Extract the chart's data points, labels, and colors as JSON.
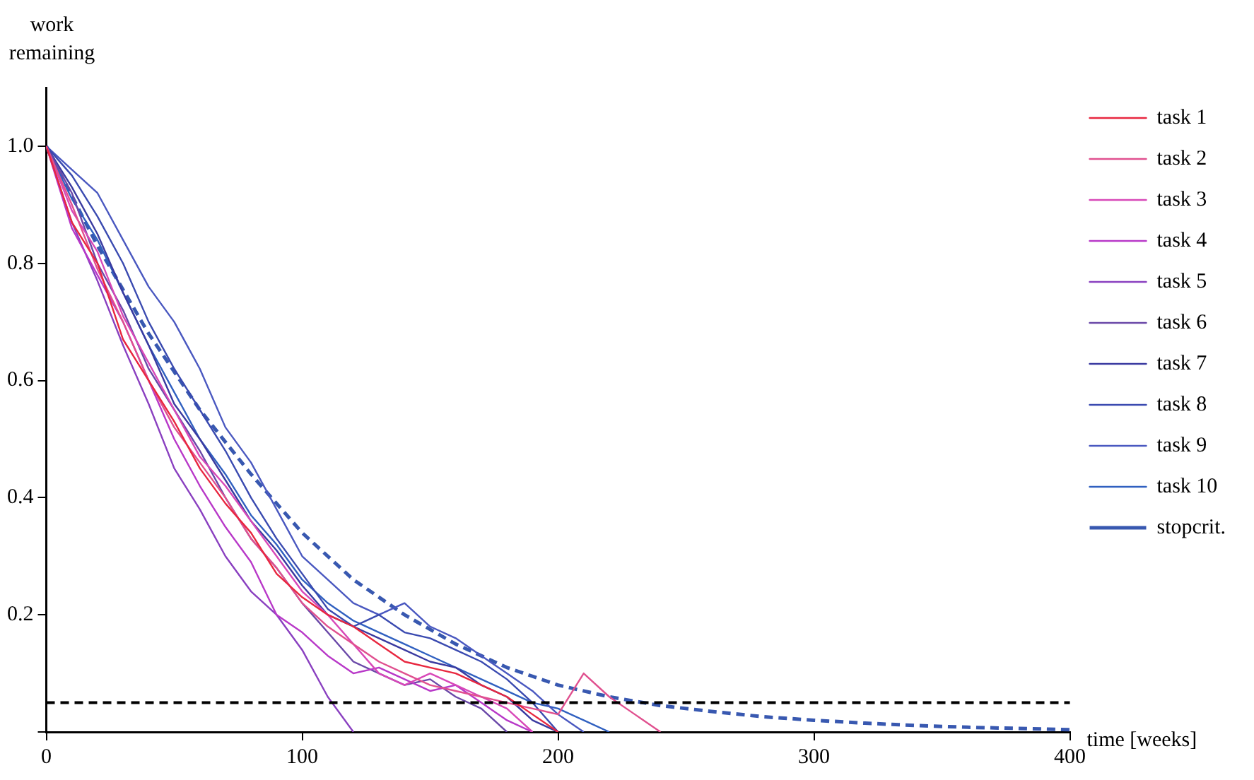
{
  "chart_data": {
    "type": "line",
    "xlabel": "time [weeks]",
    "ylabel": "work remaining",
    "x": [
      0,
      10,
      20,
      30,
      40,
      50,
      60,
      70,
      80,
      90,
      100,
      110,
      120,
      130,
      140,
      150,
      160,
      170,
      180,
      190,
      200,
      210,
      220,
      230,
      240
    ],
    "xlim": [
      0,
      400
    ],
    "xticks": [
      0,
      100,
      200,
      300,
      400
    ],
    "ylim": [
      0,
      1.1
    ],
    "yticks": [
      {
        "value": 0,
        "label": null
      },
      0.2,
      0.4,
      0.6,
      0.8,
      {
        "value": 1,
        "label": "1.0"
      }
    ],
    "grid": false,
    "legend": "top right",
    "marker": "none",
    "line_style": "solid",
    "ref_lines": [
      {
        "axis": "y",
        "value": 0.05,
        "color": "#000000",
        "line_style": "dashed"
      }
    ],
    "series": [
      {
        "name": "task 1",
        "color": "#e8273f",
        "values": [
          1.0,
          0.87,
          0.8,
          0.67,
          0.6,
          0.53,
          0.45,
          0.39,
          0.34,
          0.27,
          0.23,
          0.2,
          0.18,
          0.15,
          0.12,
          0.11,
          0.1,
          0.08,
          0.06,
          0.03,
          0.0,
          null,
          null,
          null,
          null
        ]
      },
      {
        "name": "task 2",
        "color": "#e0508f",
        "values": [
          1.0,
          0.9,
          0.79,
          0.7,
          0.6,
          0.52,
          0.46,
          0.4,
          0.33,
          0.28,
          0.22,
          0.18,
          0.15,
          0.12,
          0.1,
          0.08,
          0.07,
          0.06,
          0.05,
          0.04,
          0.03,
          0.1,
          0.06,
          0.03,
          0.0
        ]
      },
      {
        "name": "task 3",
        "color": "#d848b8",
        "values": [
          1.0,
          0.89,
          0.82,
          0.71,
          0.63,
          0.55,
          0.47,
          0.42,
          0.36,
          0.3,
          0.24,
          0.2,
          0.15,
          0.1,
          0.08,
          0.1,
          0.08,
          0.06,
          0.04,
          0.0,
          null,
          null,
          null,
          null,
          null
        ]
      },
      {
        "name": "task 4",
        "color": "#b838c8",
        "values": [
          1.0,
          0.86,
          0.78,
          0.7,
          0.6,
          0.5,
          0.42,
          0.35,
          0.29,
          0.2,
          0.17,
          0.13,
          0.1,
          0.11,
          0.09,
          0.07,
          0.08,
          0.05,
          0.02,
          0.0,
          null,
          null,
          null,
          null,
          null
        ]
      },
      {
        "name": "task 5",
        "color": "#8a40c0",
        "values": [
          1.0,
          0.87,
          0.77,
          0.66,
          0.56,
          0.45,
          0.38,
          0.3,
          0.24,
          0.2,
          0.14,
          0.06,
          0.0,
          null,
          null,
          null,
          null,
          null,
          null,
          null,
          null,
          null,
          null,
          null,
          null
        ]
      },
      {
        "name": "task 6",
        "color": "#6a48a8",
        "values": [
          1.0,
          0.92,
          0.8,
          0.72,
          0.62,
          0.55,
          0.48,
          0.4,
          0.33,
          0.28,
          0.22,
          0.17,
          0.12,
          0.1,
          0.08,
          0.09,
          0.06,
          0.04,
          0.0,
          null,
          null,
          null,
          null,
          null,
          null
        ]
      },
      {
        "name": "task 7",
        "color": "#3a3aa0",
        "values": [
          1.0,
          0.93,
          0.85,
          0.75,
          0.66,
          0.56,
          0.5,
          0.43,
          0.36,
          0.31,
          0.25,
          0.2,
          0.18,
          0.16,
          0.14,
          0.12,
          0.11,
          0.08,
          0.06,
          0.02,
          0.0,
          null,
          null,
          null,
          null
        ]
      },
      {
        "name": "task 8",
        "color": "#3a4ab0",
        "values": [
          1.0,
          0.95,
          0.88,
          0.8,
          0.7,
          0.62,
          0.55,
          0.48,
          0.4,
          0.33,
          0.27,
          0.21,
          0.18,
          0.2,
          0.17,
          0.16,
          0.14,
          0.12,
          0.09,
          0.05,
          0.0,
          null,
          null,
          null,
          null
        ]
      },
      {
        "name": "task 9",
        "color": "#4a58c0",
        "values": [
          1.0,
          0.96,
          0.92,
          0.84,
          0.76,
          0.7,
          0.62,
          0.52,
          0.46,
          0.38,
          0.3,
          0.26,
          0.22,
          0.2,
          0.22,
          0.18,
          0.16,
          0.13,
          0.1,
          0.07,
          0.03,
          0.0,
          null,
          null,
          null
        ]
      },
      {
        "name": "task 10",
        "color": "#3060c0",
        "values": [
          1.0,
          0.91,
          0.84,
          0.75,
          0.66,
          0.58,
          0.5,
          0.44,
          0.37,
          0.32,
          0.26,
          0.22,
          0.19,
          0.17,
          0.15,
          0.13,
          0.11,
          0.09,
          0.07,
          0.05,
          0.04,
          0.02,
          0.0,
          null,
          null
        ]
      },
      {
        "name": "stopcrit.",
        "color": "#3858b0",
        "line_style": "dashed",
        "x": [
          0,
          20,
          40,
          60,
          80,
          100,
          120,
          140,
          160,
          180,
          200,
          220,
          240,
          260,
          280,
          300,
          320,
          340,
          360,
          380,
          400
        ],
        "values": [
          1.0,
          0.83,
          0.68,
          0.55,
          0.44,
          0.34,
          0.26,
          0.2,
          0.15,
          0.11,
          0.08,
          0.06,
          0.045,
          0.035,
          0.026,
          0.02,
          0.015,
          0.011,
          0.008,
          0.006,
          0.004
        ]
      }
    ]
  }
}
